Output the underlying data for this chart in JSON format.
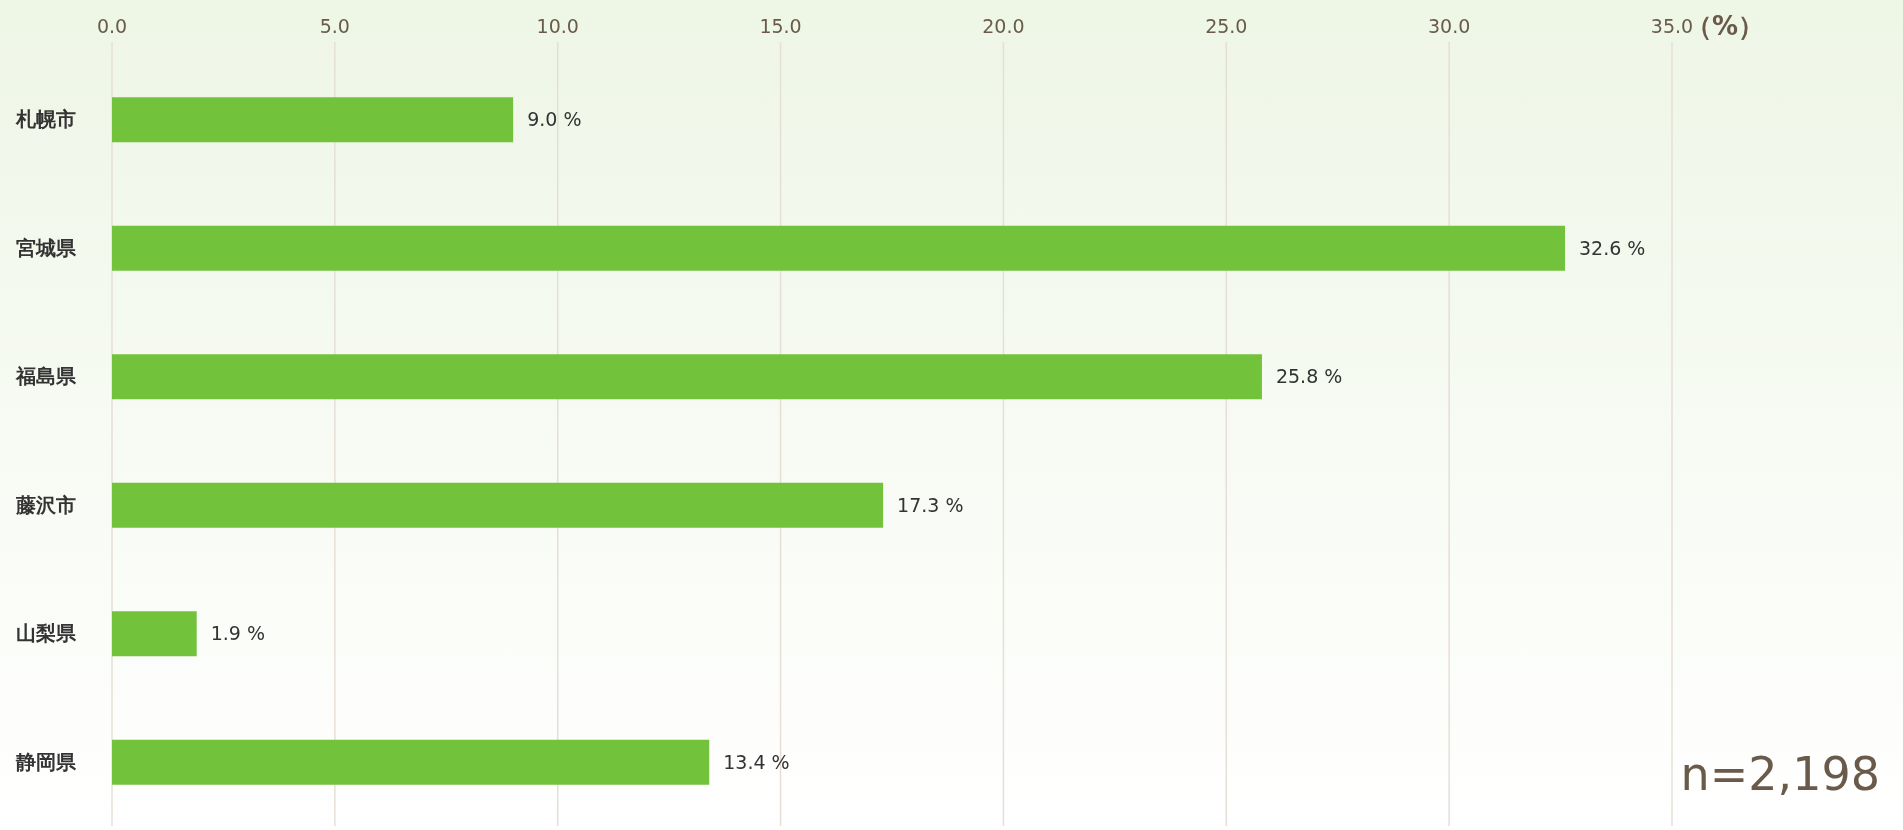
{
  "chart_data": {
    "type": "bar",
    "orientation": "horizontal",
    "xlabel": "（%）",
    "categories": [
      "札幌市",
      "宮城県",
      "福島県",
      "藤沢市",
      "山梨県",
      "静岡県"
    ],
    "values": [
      9.0,
      32.6,
      25.8,
      17.3,
      1.9,
      13.4
    ],
    "value_labels": [
      "9.0 %",
      "32.6 %",
      "25.8 %",
      "17.3 %",
      "1.9 %",
      "13.4 %"
    ],
    "color": "#72c23c",
    "xlim": [
      0,
      35
    ],
    "xticks": [
      {
        "value": 0,
        "label": "0.0"
      },
      {
        "value": 5,
        "label": "5.0"
      },
      {
        "value": 10,
        "label": "10.0"
      },
      {
        "value": 15,
        "label": "15.0"
      },
      {
        "value": 20,
        "label": "20.0"
      },
      {
        "value": 25,
        "label": "25.0"
      },
      {
        "value": 30,
        "label": "30.0"
      },
      {
        "value": 35,
        "label": "35.0"
      }
    ],
    "grid": "x",
    "annotations": [
      "n=2,198"
    ]
  }
}
